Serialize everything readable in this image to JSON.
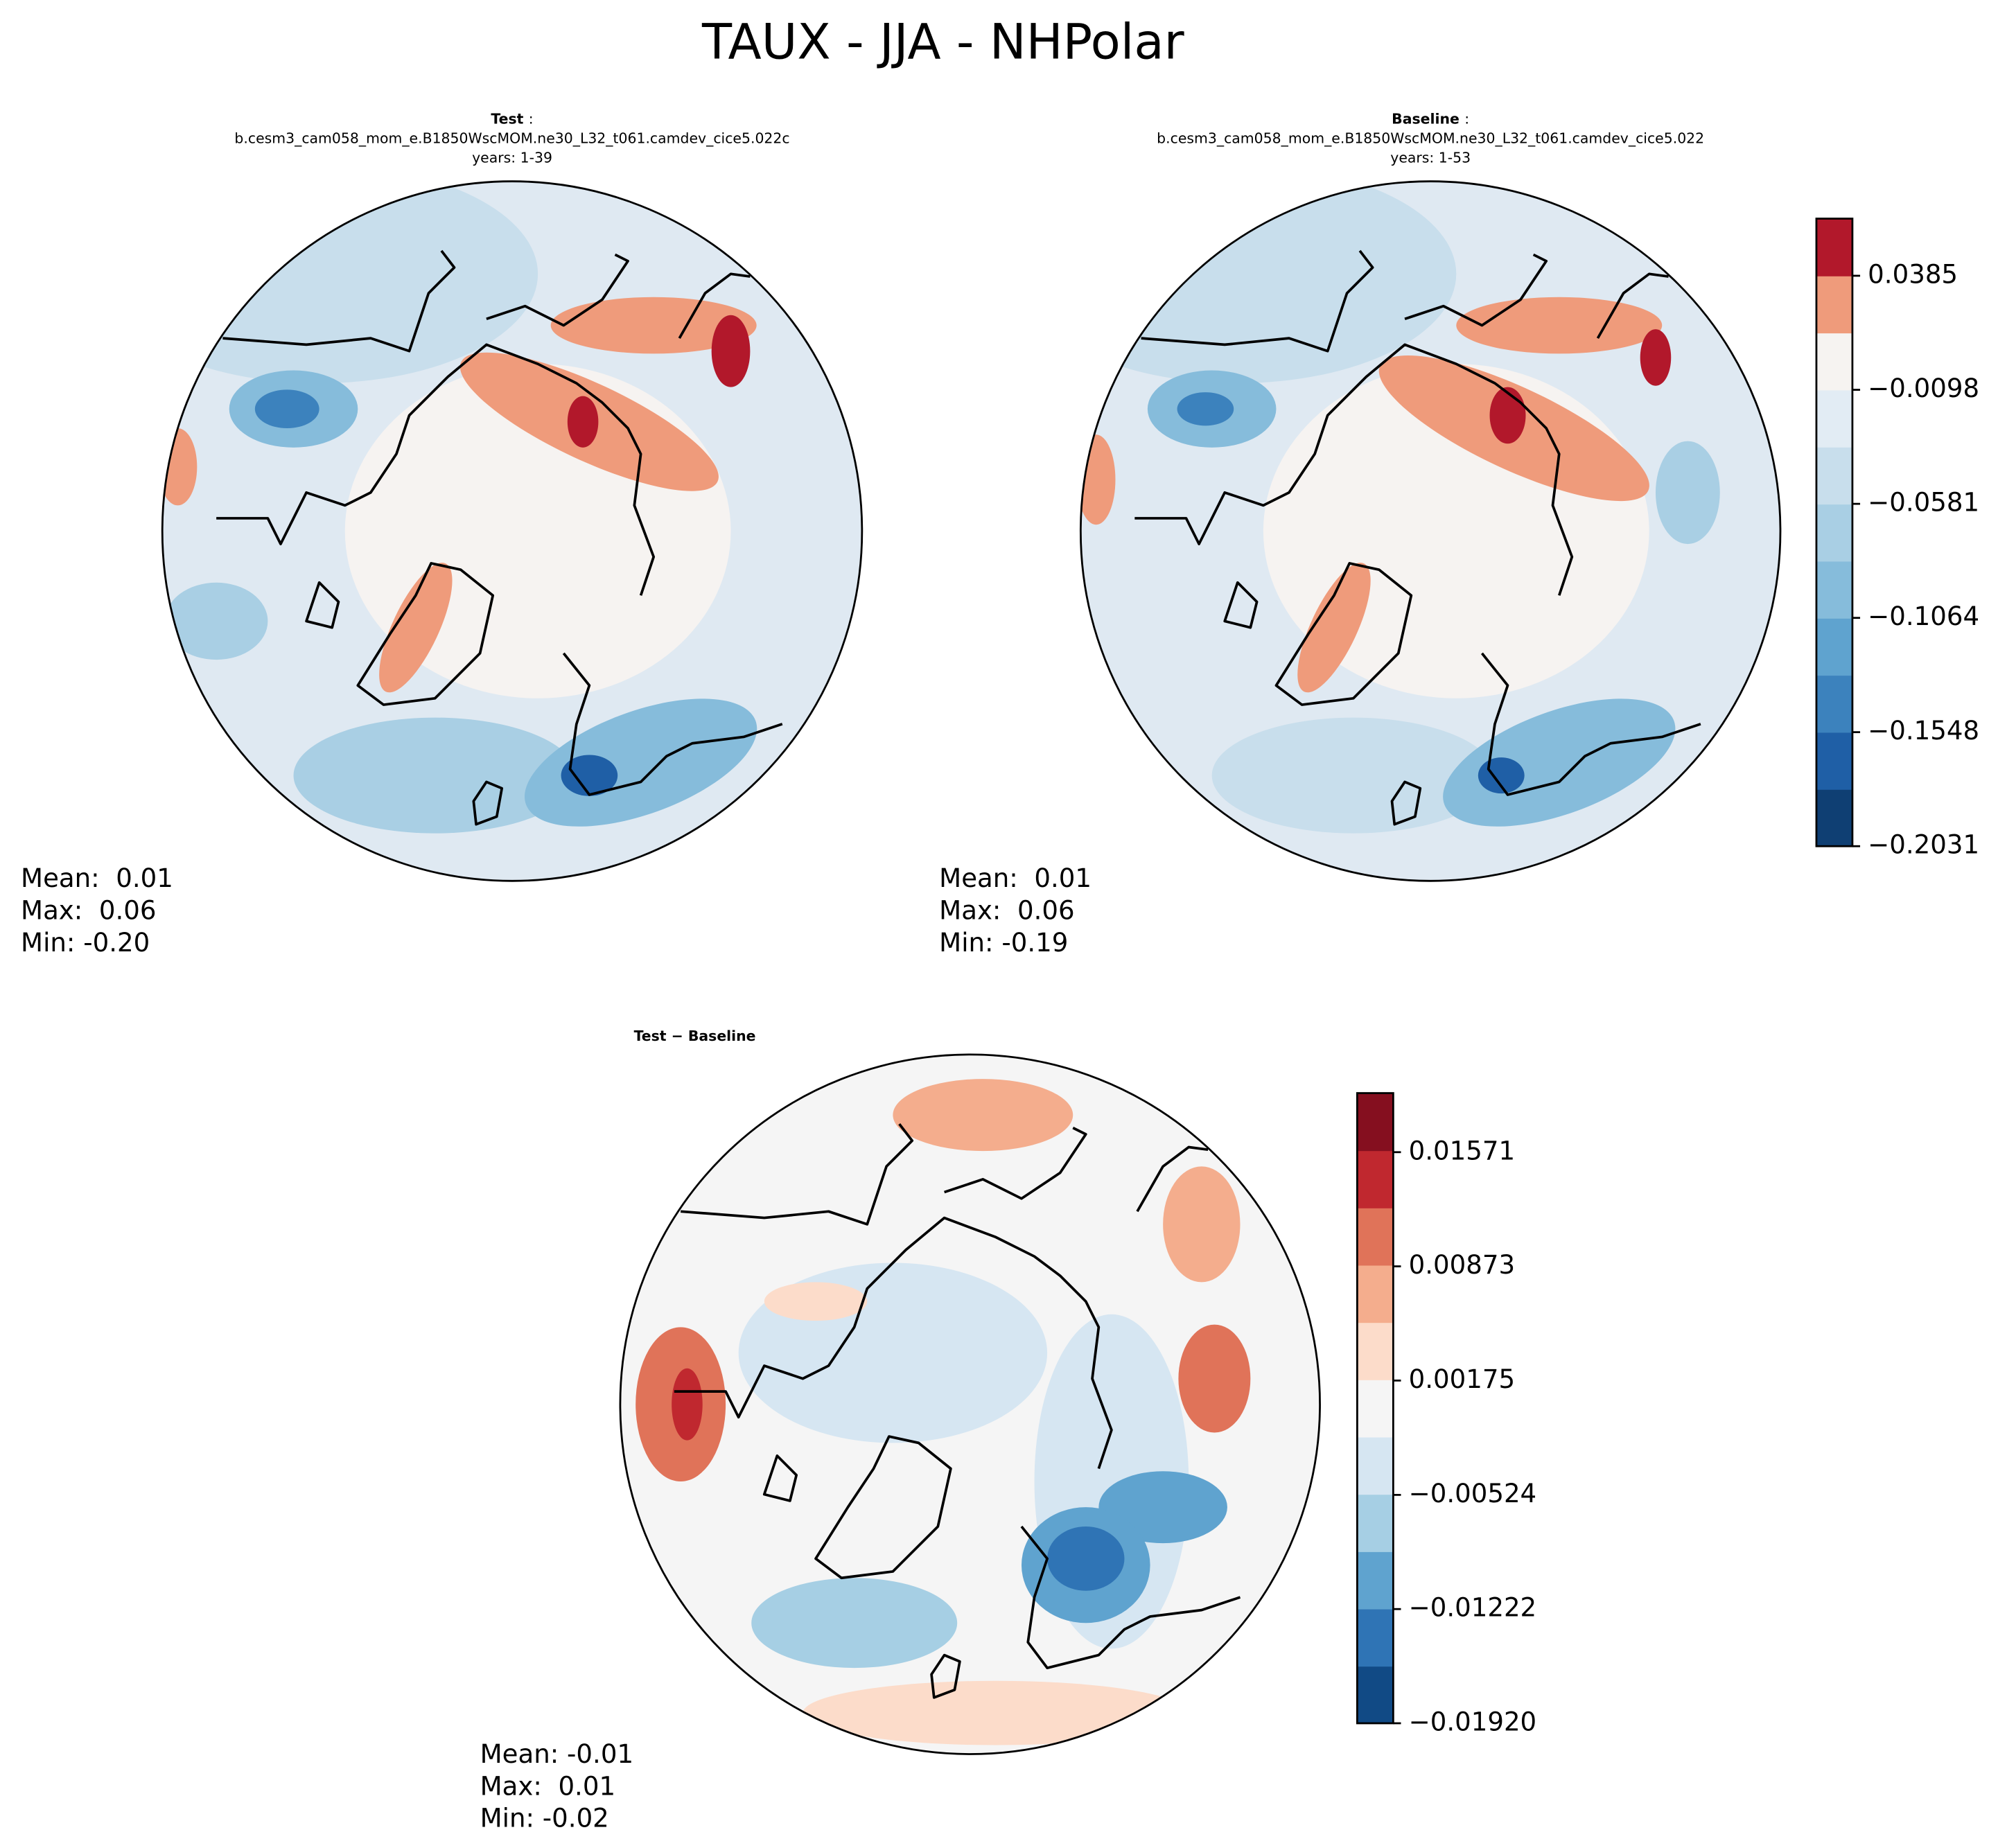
{
  "title": "TAUX - JJA - NHPolar",
  "panels": [
    {
      "label": "Test",
      "separator": ":",
      "case": "b.cesm3_cam058_mom_e.B1850WscMOM.ne30_L32_t061.camdev_cice5.022c",
      "years": "years: 1-39",
      "stats": [
        "Mean:  0.01",
        "Max:  0.06",
        "Min: -0.20"
      ]
    },
    {
      "label": "Baseline",
      "separator": ":",
      "case": "b.cesm3_cam058_mom_e.B1850WscMOM.ne30_L32_t061.camdev_cice5.022",
      "years": "years: 1-53",
      "stats": [
        "Mean:  0.01",
        "Max:  0.06",
        "Min: -0.19"
      ]
    },
    {
      "label": "Test − Baseline",
      "stats": [
        "Mean: -0.01",
        "Max:  0.01",
        "Min: -0.02"
      ]
    }
  ],
  "colorbars": [
    {
      "lim": [
        -0.2031,
        0.0627
      ],
      "ticks": [
        {
          "value": -0.2031,
          "label": "−0.2031"
        },
        {
          "value": -0.1548,
          "label": "−0.1548"
        },
        {
          "value": -0.1064,
          "label": "−0.1064"
        },
        {
          "value": -0.0581,
          "label": "−0.0581"
        },
        {
          "value": -0.0098,
          "label": "−0.0098"
        },
        0.0385
      ],
      "colors": [
        "#0f3f73",
        "#1f5fa6",
        "#3c82bd",
        "#5fa3cf",
        "#86bcdb",
        "#a9cfe4",
        "#c8deec",
        "#e2ecf4",
        "#f6f3f1",
        "#ef9b7b",
        "#b2182b"
      ]
    },
    {
      "lim": [
        -0.0192,
        0.01932
      ],
      "ticks": [
        {
          "value": -0.0192,
          "label": "−0.01920"
        },
        {
          "value": -0.01222,
          "label": "−0.01222"
        },
        {
          "value": -0.00524,
          "label": "−0.00524"
        },
        0.00175,
        0.00873,
        0.01571
      ],
      "colors": [
        "#114a85",
        "#2f74b5",
        "#5fa3cf",
        "#a6cfe4",
        "#d6e6f2",
        "#f5f5f5",
        "#fcdcca",
        "#f4ad8d",
        "#e07359",
        "#c0282f",
        "#850f1f"
      ]
    }
  ]
}
